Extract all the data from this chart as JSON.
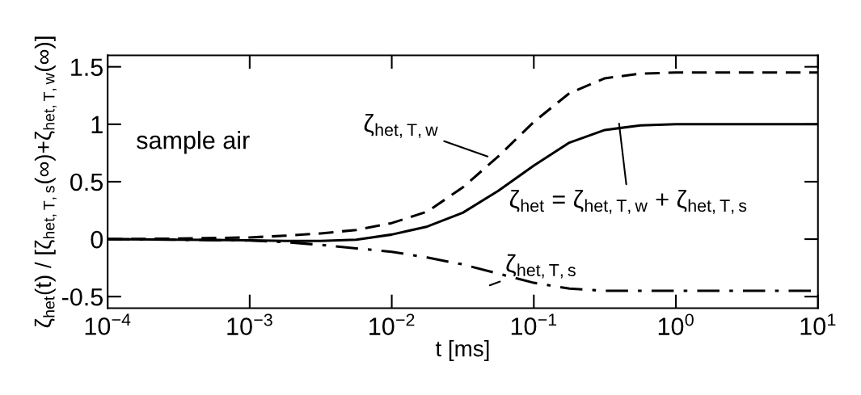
{
  "chart_data": {
    "type": "line",
    "xlabel": "t [ms]",
    "ylabel": "ζ$_{het}$(t) / [ζ$_{het,T,s}$(∞)+ζ$_{het,T,w}$(∞)]",
    "log": "x",
    "xlim": [
      0.0001,
      10
    ],
    "ylim": [
      -0.6,
      1.6
    ],
    "xticks": [
      {
        "value": 0.0001,
        "label": "10$^{−4}$"
      },
      {
        "value": 0.001,
        "label": "10$^{−3}$"
      },
      {
        "value": 0.01,
        "label": "10$^{−2}$"
      },
      {
        "value": 0.1,
        "label": "10$^{−1}$"
      },
      {
        "value": 1,
        "label": "10$^{0}$"
      },
      {
        "value": 10,
        "label": "10$^{1}$"
      }
    ],
    "yticks": [
      {
        "value": -0.5,
        "label": "-0.5"
      },
      0,
      0.5,
      1,
      1.5
    ],
    "grid": false,
    "legend": false,
    "marker": "none",
    "x": [
      0.0001,
      0.000316,
      0.001,
      0.00178,
      0.00316,
      0.00562,
      0.01,
      0.0178,
      0.0316,
      0.0562,
      0.1,
      0.178,
      0.316,
      0.562,
      1,
      3.16,
      10
    ],
    "series": [
      {
        "color": "#000000",
        "line_style": "solid",
        "values": [
          0,
          -0.005,
          -0.01,
          -0.015,
          -0.015,
          -0.005,
          0.04,
          0.11,
          0.23,
          0.42,
          0.64,
          0.84,
          0.95,
          0.99,
          1.0,
          1.0,
          1.0
        ]
      },
      {
        "color": "#000000",
        "line_style": "dashed",
        "values": [
          0,
          0.005,
          0.015,
          0.03,
          0.05,
          0.08,
          0.14,
          0.24,
          0.45,
          0.72,
          1.02,
          1.27,
          1.4,
          1.44,
          1.45,
          1.45,
          1.45
        ]
      },
      {
        "color": "#000000",
        "line_style": "dashdot",
        "values": [
          0,
          -0.005,
          -0.012,
          -0.025,
          -0.05,
          -0.08,
          -0.11,
          -0.16,
          -0.22,
          -0.3,
          -0.38,
          -0.43,
          -0.45,
          -0.45,
          -0.45,
          -0.45,
          -0.45
        ]
      }
    ],
    "annotations": [
      "sample air",
      "ζ$_{het,T,w}$",
      "ζ$_{het}$ = ζ$_{het,T,w}$ + ζ$_{het,T,s}$",
      "ζ$_{het,T,s}$"
    ]
  }
}
